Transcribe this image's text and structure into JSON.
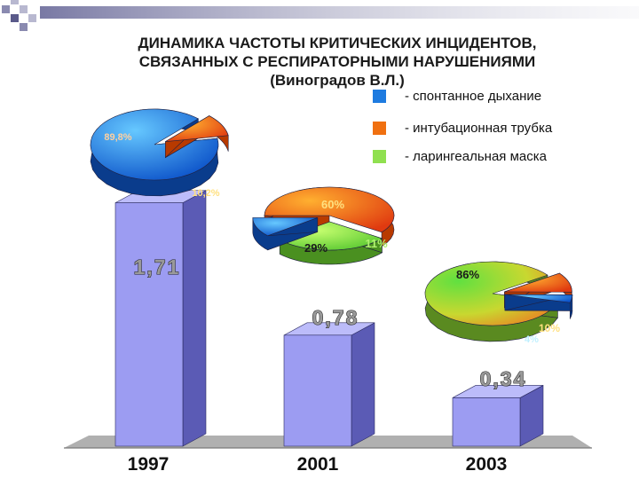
{
  "title_lines": [
    "ДИНАМИКА ЧАСТОТЫ КРИТИЧЕСКИХ ИНЦИДЕНТОВ,",
    "СВЯЗАННЫХ С РЕСПИРАТОРНЫМИ НАРУШЕНИЯМИ",
    "(Виноградов В.Л.)"
  ],
  "legend": [
    {
      "label": "- спонтанное дыхание",
      "color": "#1e7be0"
    },
    {
      "label": "- интубационная трубка",
      "color": "#f07010"
    },
    {
      "label": "- ларингеальная маска",
      "color": "#90e050"
    }
  ],
  "colors": {
    "bar_front": "#9c9cf2",
    "bar_side": "#5b5bb5",
    "bar_top": "#bcbcfa",
    "value_label": "#999999",
    "pie_label_green": "#1a1a1a",
    "year_label": "#111111",
    "floor": "#b0b0b0"
  },
  "chart_data": [
    {
      "type": "bar",
      "categories": [
        "1997",
        "2001",
        "2003"
      ],
      "values": [
        1.71,
        0.78,
        0.34
      ],
      "value_labels": [
        "1,71",
        "0,78",
        "0,34"
      ],
      "ylim": [
        0,
        2.2
      ]
    },
    {
      "type": "pie",
      "category": "1997",
      "labels": [
        "спонтанное дыхание",
        "интубационная трубка"
      ],
      "values": [
        89.8,
        10.2
      ],
      "value_labels": [
        "89,8%",
        "10,2%"
      ]
    },
    {
      "type": "pie",
      "category": "2001",
      "labels": [
        "интубационная трубка",
        "ларингеальная маска",
        "спонтанное дыхание"
      ],
      "values": [
        60,
        29,
        11
      ],
      "value_labels": [
        "60%",
        "29%",
        "11%"
      ]
    },
    {
      "type": "pie",
      "category": "2003",
      "labels": [
        "ларингеальная маска",
        "интубационная трубка",
        "спонтанное дыхание"
      ],
      "values": [
        86,
        10,
        4
      ],
      "value_labels": [
        "86%",
        "10%",
        "4%"
      ]
    }
  ]
}
